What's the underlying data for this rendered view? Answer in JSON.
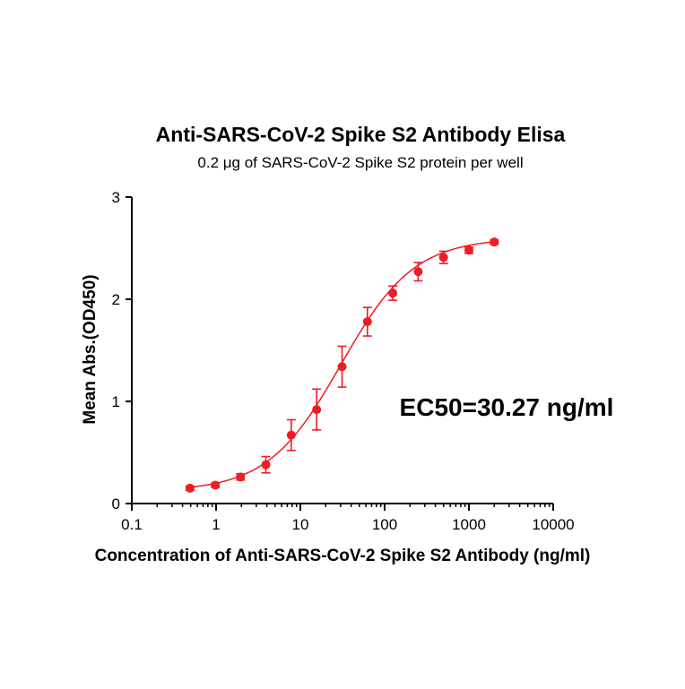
{
  "chart_data": {
    "type": "scatter",
    "title": "Anti-SARS-CoV-2 Spike S2 Antibody Elisa",
    "subtitle": "0.2 μg of SARS-CoV-2 Spike S2 protein per well",
    "xlabel": "Concentration of Anti-SARS-CoV-2 Spike S2 Antibody (ng/ml)",
    "ylabel": "Mean Abs.(OD450)",
    "x_scale": "log",
    "xlim": [
      0.1,
      10000
    ],
    "ylim": [
      0,
      3
    ],
    "x_ticks": [
      {
        "value": 0.1,
        "label": "0.1"
      },
      {
        "value": 1,
        "label": "1"
      },
      {
        "value": 10,
        "label": "10"
      },
      {
        "value": 100,
        "label": "100"
      },
      {
        "value": 1000,
        "label": "1000"
      },
      {
        "value": 10000,
        "label": "10000"
      }
    ],
    "y_ticks": [
      {
        "value": 0,
        "label": "0"
      },
      {
        "value": 1,
        "label": "1"
      },
      {
        "value": 2,
        "label": "2"
      },
      {
        "value": 3,
        "label": "3"
      }
    ],
    "grid": false,
    "legend": "none",
    "annotation": "EC50=30.27 ng/ml",
    "color": "#ee1c24",
    "series": [
      {
        "x": [
          0.49,
          0.98,
          1.95,
          3.9,
          7.8,
          15.6,
          31.25,
          62.5,
          125,
          250,
          500,
          1000,
          2000
        ],
        "y": [
          0.15,
          0.18,
          0.26,
          0.38,
          0.67,
          0.92,
          1.34,
          1.78,
          2.06,
          2.27,
          2.41,
          2.48,
          2.56
        ],
        "err": [
          0.02,
          0.02,
          0.03,
          0.08,
          0.15,
          0.2,
          0.2,
          0.14,
          0.07,
          0.09,
          0.06,
          0.03,
          0.02
        ]
      }
    ],
    "fit": {
      "type": "4PL",
      "bottom": 0.12,
      "top": 2.6,
      "ec50": 30.27,
      "hill": 1.0,
      "x_range": [
        0.49,
        2000
      ]
    }
  }
}
